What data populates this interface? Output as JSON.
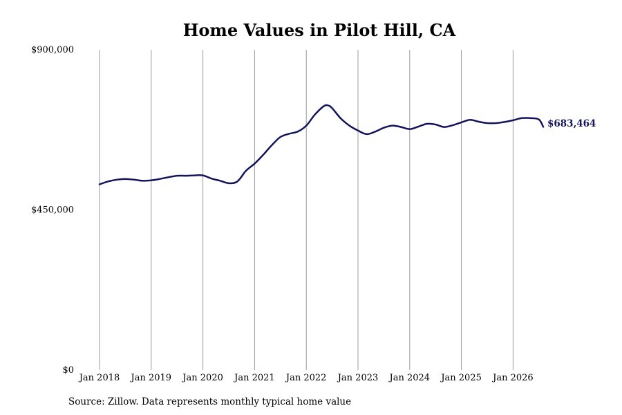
{
  "chart_data": {
    "type": "line",
    "title": "Home Values in Pilot Hill, CA",
    "xlabel": "",
    "ylabel": "",
    "ylim": [
      0,
      900000
    ],
    "yticks": [
      {
        "value": 0,
        "label": "$0"
      },
      {
        "value": 450000,
        "label": "$450,000"
      },
      {
        "value": 900000,
        "label": "$900,000"
      }
    ],
    "xlim": [
      "2018-01",
      "2026-08"
    ],
    "xticks": [
      {
        "date": "2018-01",
        "label": "Jan 2018"
      },
      {
        "date": "2019-01",
        "label": "Jan 2019"
      },
      {
        "date": "2020-01",
        "label": "Jan 2020"
      },
      {
        "date": "2021-01",
        "label": "Jan 2021"
      },
      {
        "date": "2022-01",
        "label": "Jan 2022"
      },
      {
        "date": "2023-01",
        "label": "Jan 2023"
      },
      {
        "date": "2024-01",
        "label": "Jan 2024"
      },
      {
        "date": "2025-01",
        "label": "Jan 2025"
      },
      {
        "date": "2026-01",
        "label": "Jan 2026"
      }
    ],
    "grid": "vertical",
    "color": "#14145c",
    "series": [
      {
        "name": "",
        "x": [
          "2018-01",
          "2018-03",
          "2018-05",
          "2018-07",
          "2018-09",
          "2018-11",
          "2019-01",
          "2019-03",
          "2019-05",
          "2019-07",
          "2019-09",
          "2019-11",
          "2020-01",
          "2020-03",
          "2020-05",
          "2020-07",
          "2020-09",
          "2020-11",
          "2021-01",
          "2021-03",
          "2021-05",
          "2021-07",
          "2021-09",
          "2021-11",
          "2022-01",
          "2022-03",
          "2022-05",
          "2022-06",
          "2022-07",
          "2022-09",
          "2022-11",
          "2023-01",
          "2023-03",
          "2023-05",
          "2023-07",
          "2023-09",
          "2023-11",
          "2024-01",
          "2024-03",
          "2024-05",
          "2024-07",
          "2024-09",
          "2024-11",
          "2025-01",
          "2025-03",
          "2025-05",
          "2025-07",
          "2025-09",
          "2025-11",
          "2026-01",
          "2026-03",
          "2026-05",
          "2026-07",
          "2026-08"
        ],
        "y": [
          522000,
          530000,
          535000,
          537000,
          535000,
          532000,
          533000,
          537000,
          542000,
          546000,
          546000,
          547000,
          547000,
          538000,
          532000,
          525000,
          530000,
          560000,
          580000,
          605000,
          632000,
          655000,
          664000,
          670000,
          687000,
          718000,
          741000,
          744000,
          736000,
          707000,
          687000,
          673000,
          663000,
          670000,
          681000,
          687000,
          683000,
          677000,
          684000,
          692000,
          690000,
          683000,
          688000,
          696000,
          703000,
          698000,
          694000,
          694000,
          697000,
          702000,
          708000,
          708000,
          704000,
          683464
        ]
      }
    ],
    "end_label": "$683,464",
    "source": "Source: Zillow. Data represents monthly typical home value"
  }
}
